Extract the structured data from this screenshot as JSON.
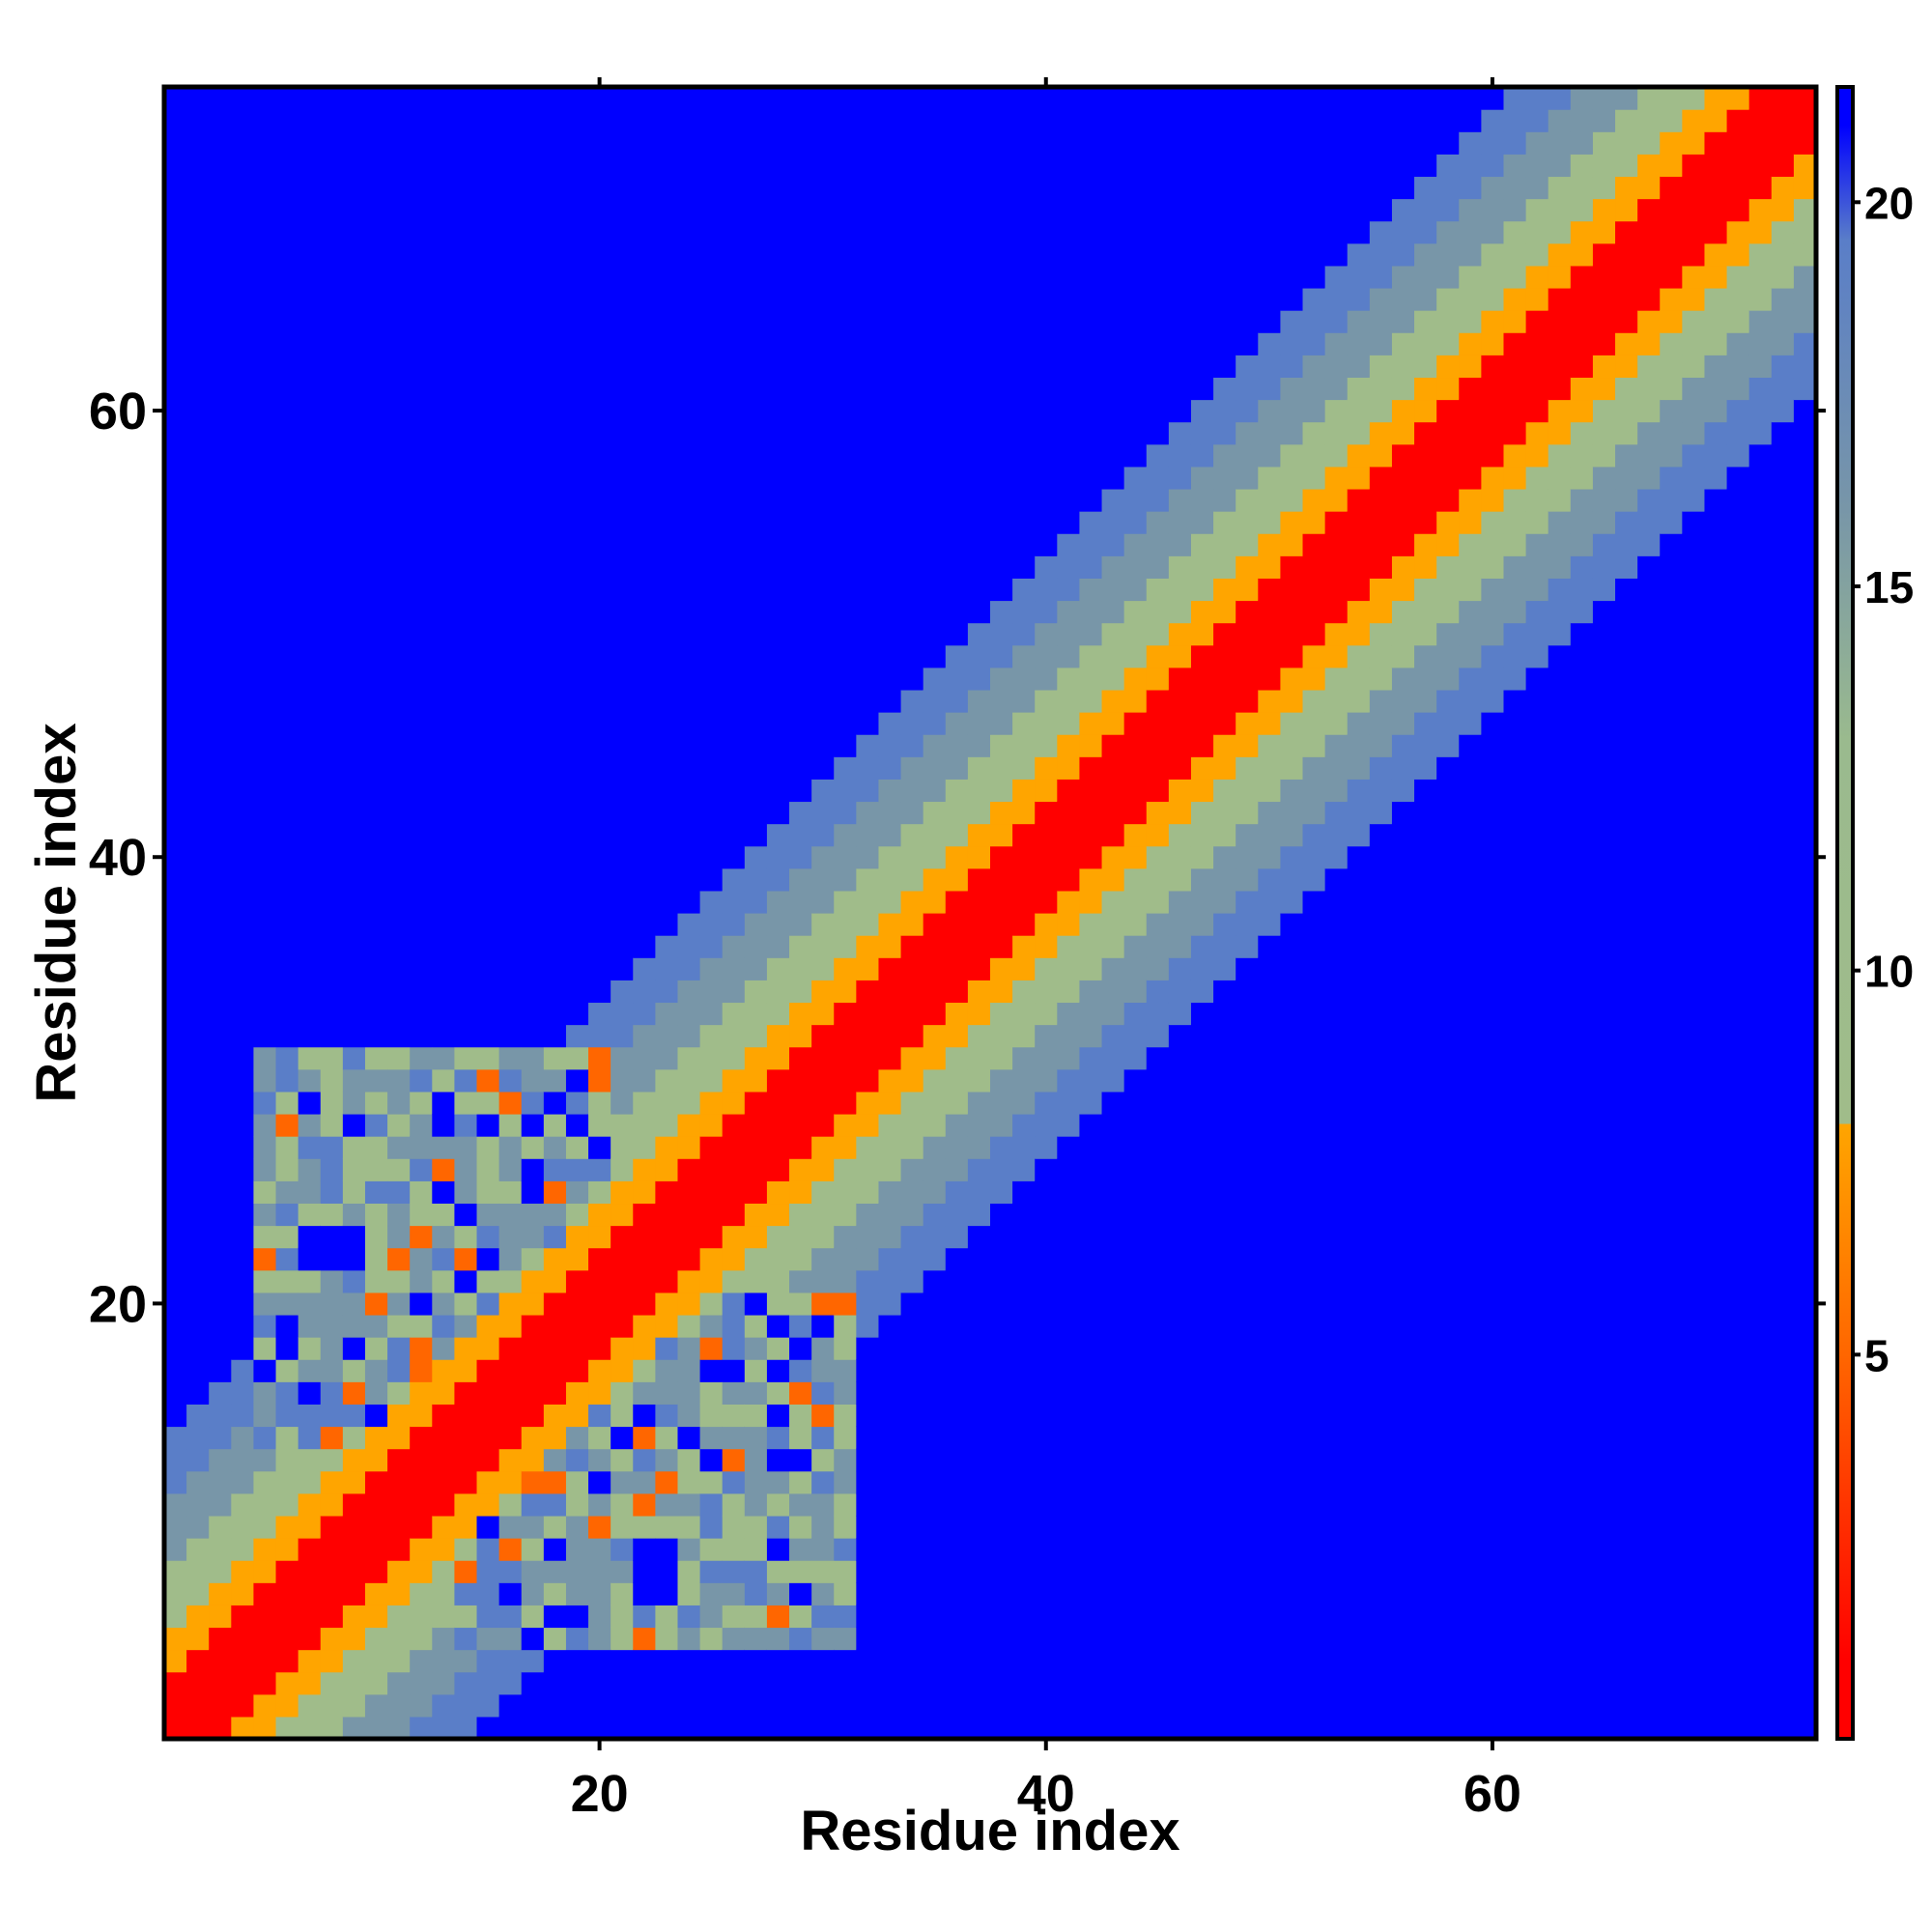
{
  "chart_data": {
    "type": "heatmap",
    "title": "",
    "xlabel": "Residue index",
    "ylabel": "Residue index",
    "xlim": [
      0.5,
      74.5
    ],
    "ylim": [
      0.5,
      74.5
    ],
    "x_ticks": [
      20,
      40,
      60
    ],
    "y_ticks": [
      20,
      40,
      60
    ],
    "residue_count": 74,
    "value_rule": "distance between residues i and j grows with |i - j|; cells beyond about 21 are drawn blue",
    "colorbar": {
      "range": [
        0,
        21.5
      ],
      "ticks": [
        5,
        10,
        15,
        20
      ],
      "stops": [
        {
          "value": 1.0,
          "color": "#ff0000"
        },
        {
          "value": 5.0,
          "color": "#ff6600"
        },
        {
          "value": 8.0,
          "color": "#ffa500"
        },
        {
          "value": 8.0,
          "color": "#a0bc8a"
        },
        {
          "value": 13.0,
          "color": "#9aba8e"
        },
        {
          "value": 16.0,
          "color": "#7896a8"
        },
        {
          "value": 19.5,
          "color": "#5a7ec8"
        },
        {
          "value": 21.0,
          "color": "#0000ff"
        }
      ]
    },
    "colors": {
      "far": "#0000ff",
      "diagonal": "#ff0000",
      "near": "#ff6600",
      "mid": "#ffa500",
      "green": "#a0bc8a",
      "grey_blue": "#7896a8",
      "steel_blue": "#5a7ec8"
    }
  }
}
